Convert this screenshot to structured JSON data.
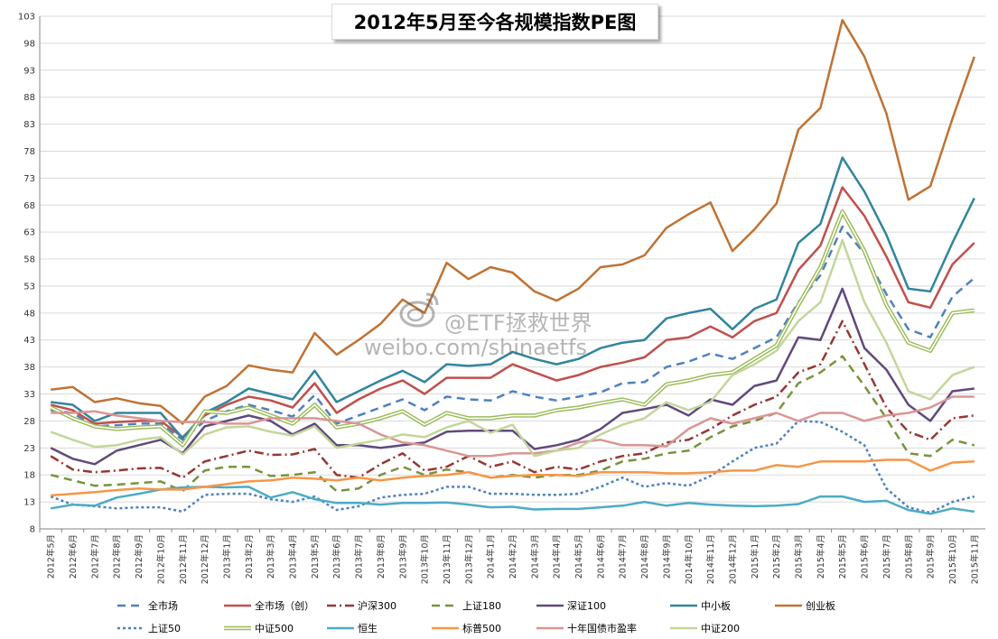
{
  "chart_data": {
    "type": "line",
    "title": "2012年5月至今各规模指数PE图",
    "xlabel": "",
    "ylabel": "",
    "ylim": [
      8,
      103
    ],
    "yticks": [
      8,
      13,
      18,
      23,
      28,
      33,
      38,
      43,
      48,
      53,
      58,
      63,
      68,
      73,
      78,
      83,
      88,
      93,
      98,
      103
    ],
    "grid": true,
    "legend": "bottom",
    "categories": [
      "2012年5月",
      "2012年6月",
      "2012年7月",
      "2012年8月",
      "2012年9月",
      "2012年10月",
      "2012年11月",
      "2012年12月",
      "2013年1月",
      "2013年2月",
      "2013年3月",
      "2013年4月",
      "2013年5月",
      "2013年6月",
      "2013年7月",
      "2013年8月",
      "2013年9月",
      "2013年10月",
      "2013年11月",
      "2013年12月",
      "2014年1月",
      "2014年2月",
      "2014年3月",
      "2014年4月",
      "2014年5月",
      "2014年6月",
      "2014年7月",
      "2014年8月",
      "2014年9月",
      "2014年10月",
      "2014年11月",
      "2014年12月",
      "2015年1月",
      "2015年2月",
      "2015年3月",
      "2015年4月",
      "2015年5月",
      "2015年6月",
      "2015年7月",
      "2015年8月",
      "2015年9月",
      "2015年10月",
      "2015年11月"
    ],
    "series": [
      {
        "name": "全市场",
        "color": "#4f81bd",
        "dash": "9,6",
        "width": 2.5,
        "values": [
          30.0,
          29.5,
          27.0,
          27.2,
          27.5,
          27.5,
          24.5,
          28.0,
          29.8,
          31.0,
          30.0,
          28.8,
          32.8,
          27.5,
          29.0,
          30.5,
          32.0,
          30.0,
          32.5,
          32.0,
          31.8,
          33.5,
          32.5,
          31.8,
          32.5,
          33.3,
          35.0,
          35.2,
          38.0,
          39.0,
          40.5,
          39.5,
          41.5,
          43.5,
          50.0,
          55.0,
          64.0,
          59.0,
          51.5,
          45.0,
          43.5,
          51.0,
          54.5
        ]
      },
      {
        "name": "全市场（创）",
        "color": "#c0504d",
        "dash": "",
        "width": 2.5,
        "values": [
          31.0,
          30.0,
          27.5,
          27.8,
          28.0,
          28.0,
          25.0,
          29.0,
          31.0,
          32.5,
          31.8,
          30.5,
          35.0,
          29.5,
          32.0,
          34.0,
          35.5,
          33.0,
          36.0,
          36.0,
          36.0,
          38.5,
          37.0,
          35.5,
          36.5,
          38.0,
          38.8,
          39.8,
          43.0,
          43.5,
          45.5,
          43.5,
          46.5,
          48.0,
          56.0,
          60.5,
          71.3,
          66.0,
          58.5,
          50.0,
          49.0,
          57.0,
          61.0
        ]
      },
      {
        "name": "沪深300",
        "color": "#953735",
        "dash": "10,4,2,4",
        "width": 2.5,
        "values": [
          21.5,
          19.0,
          18.5,
          18.8,
          19.2,
          19.3,
          17.5,
          20.5,
          21.5,
          22.5,
          21.7,
          21.8,
          22.8,
          18.0,
          17.5,
          20.0,
          22.0,
          18.8,
          19.5,
          21.5,
          19.5,
          20.5,
          18.5,
          19.5,
          19.0,
          20.5,
          21.5,
          22.0,
          24.0,
          24.5,
          26.5,
          29.0,
          31.0,
          32.5,
          37.0,
          38.5,
          46.5,
          38.5,
          30.5,
          26.0,
          24.5,
          28.5,
          29.0
        ]
      },
      {
        "name": "上证180",
        "color": "#77933c",
        "dash": "9,6",
        "width": 2.5,
        "values": [
          18.0,
          17.0,
          16.0,
          16.2,
          16.5,
          16.8,
          15.0,
          18.8,
          19.5,
          19.5,
          17.8,
          18.0,
          18.5,
          15.0,
          15.5,
          18.0,
          19.5,
          18.0,
          19.0,
          18.5,
          17.5,
          18.0,
          17.5,
          18.0,
          18.0,
          18.8,
          20.5,
          21.0,
          22.0,
          22.5,
          25.0,
          27.0,
          28.0,
          29.5,
          35.0,
          37.0,
          40.0,
          34.5,
          28.5,
          22.0,
          21.5,
          24.5,
          23.5
        ]
      },
      {
        "name": "深证100",
        "color": "#604a7b",
        "dash": "",
        "width": 2.5,
        "values": [
          23.0,
          21.0,
          20.0,
          22.5,
          23.5,
          24.5,
          22.0,
          27.0,
          28.0,
          29.0,
          28.0,
          25.5,
          27.5,
          23.5,
          23.5,
          23.0,
          23.5,
          24.0,
          26.0,
          26.2,
          26.2,
          26.2,
          22.8,
          23.5,
          24.5,
          26.5,
          29.5,
          30.2,
          31.0,
          29.0,
          32.0,
          31.0,
          34.5,
          35.5,
          43.5,
          43.0,
          52.5,
          41.5,
          37.5,
          31.0,
          28.0,
          33.5,
          34.0
        ]
      },
      {
        "name": "中小板",
        "color": "#31859c",
        "dash": "",
        "width": 2.5,
        "values": [
          31.5,
          31.0,
          28.0,
          29.5,
          29.5,
          29.5,
          24.8,
          29.5,
          31.5,
          34.0,
          33.0,
          32.0,
          37.3,
          31.5,
          33.5,
          35.5,
          37.3,
          35.2,
          38.5,
          38.2,
          38.5,
          40.8,
          39.5,
          38.5,
          39.5,
          41.5,
          42.5,
          43.0,
          47.0,
          48.0,
          48.8,
          45.0,
          48.8,
          50.5,
          61.0,
          64.5,
          76.8,
          70.5,
          62.5,
          52.5,
          52.0,
          61.0,
          69.3
        ]
      },
      {
        "name": "创业板",
        "color": "#c07233",
        "dash": "",
        "width": 2.5,
        "values": [
          33.8,
          34.3,
          31.5,
          32.2,
          31.3,
          30.8,
          27.5,
          32.5,
          34.5,
          38.3,
          37.5,
          37.0,
          44.3,
          40.3,
          43.0,
          46.0,
          50.5,
          48.0,
          57.3,
          54.3,
          56.5,
          55.5,
          52.0,
          50.3,
          52.5,
          56.5,
          57.0,
          58.7,
          63.8,
          66.3,
          68.5,
          59.5,
          63.5,
          68.3,
          82.0,
          86.0,
          102.3,
          95.5,
          85.0,
          69.0,
          71.5,
          84.0,
          95.5
        ]
      },
      {
        "name": "上证50",
        "color": "#4f81bd",
        "dash": "3,3",
        "width": 2.5,
        "values": [
          14.0,
          12.5,
          12.2,
          11.8,
          12.0,
          12.0,
          11.2,
          14.3,
          14.5,
          14.5,
          13.5,
          13.0,
          14.0,
          11.5,
          12.2,
          13.8,
          14.3,
          14.5,
          15.8,
          15.8,
          14.5,
          14.5,
          14.3,
          14.3,
          14.5,
          15.8,
          17.5,
          15.8,
          16.5,
          16.0,
          17.8,
          20.5,
          23.0,
          23.8,
          28.0,
          27.8,
          26.0,
          23.5,
          15.5,
          12.0,
          11.0,
          13.0,
          14.0
        ]
      },
      {
        "name": "中证500",
        "color": "#9bbb59",
        "dash": "",
        "width": 2.5,
        "double": true,
        "values": [
          30.5,
          28.5,
          27.0,
          26.5,
          26.8,
          27.0,
          23.5,
          29.8,
          29.5,
          30.5,
          29.0,
          27.5,
          31.0,
          26.8,
          27.5,
          28.5,
          29.8,
          27.3,
          29.5,
          28.5,
          28.5,
          29.0,
          29.0,
          30.0,
          30.5,
          31.3,
          32.0,
          31.0,
          34.8,
          35.5,
          36.5,
          37.0,
          39.5,
          42.0,
          49.5,
          56.5,
          66.8,
          59.5,
          49.5,
          42.5,
          41.0,
          48.0,
          48.5
        ]
      },
      {
        "name": "恒生",
        "color": "#4bacc6",
        "dash": "",
        "width": 2.5,
        "values": [
          11.8,
          12.5,
          12.3,
          13.8,
          14.5,
          15.3,
          15.7,
          15.8,
          15.7,
          15.8,
          13.8,
          14.8,
          13.5,
          12.8,
          12.8,
          12.5,
          12.8,
          12.8,
          12.9,
          12.5,
          12.0,
          12.1,
          11.6,
          11.7,
          11.7,
          12.0,
          12.3,
          13.0,
          12.3,
          12.8,
          12.5,
          12.3,
          12.2,
          12.3,
          12.6,
          14.0,
          14.0,
          13.0,
          13.2,
          11.5,
          10.8,
          11.8,
          11.2
        ]
      },
      {
        "name": "标普500",
        "color": "#f79646",
        "dash": "",
        "width": 2.5,
        "values": [
          14.2,
          14.5,
          14.8,
          15.2,
          15.5,
          15.3,
          15.3,
          15.8,
          16.3,
          16.8,
          17.0,
          17.5,
          17.3,
          17.0,
          17.5,
          17.0,
          17.5,
          17.8,
          18.0,
          18.5,
          17.5,
          17.8,
          18.0,
          18.0,
          17.8,
          18.5,
          18.5,
          18.5,
          18.3,
          18.3,
          18.5,
          18.8,
          18.8,
          19.8,
          19.5,
          20.5,
          20.5,
          20.5,
          20.8,
          20.8,
          18.8,
          20.3,
          20.5
        ]
      },
      {
        "name": "十年国债市盈率",
        "color": "#d99694",
        "dash": "",
        "width": 2.5,
        "values": [
          29.5,
          29.5,
          29.8,
          29.0,
          28.5,
          28.0,
          27.8,
          27.8,
          27.5,
          27.5,
          28.5,
          28.5,
          28.5,
          28.0,
          27.5,
          25.5,
          24.0,
          23.5,
          22.5,
          21.5,
          21.5,
          22.0,
          22.0,
          22.5,
          24.0,
          24.5,
          23.5,
          23.5,
          23.3,
          26.5,
          28.5,
          27.5,
          28.5,
          29.5,
          28.0,
          29.5,
          29.5,
          28.0,
          29.0,
          29.5,
          30.5,
          32.5,
          32.5
        ]
      },
      {
        "name": "中证200",
        "color": "#c3d69b",
        "dash": "",
        "width": 2.5,
        "values": [
          26.0,
          24.5,
          23.2,
          23.5,
          24.5,
          25.0,
          21.8,
          25.5,
          26.8,
          27.0,
          26.0,
          25.3,
          27.0,
          23.0,
          23.8,
          24.5,
          25.5,
          25.0,
          26.8,
          28.0,
          25.8,
          27.3,
          21.5,
          22.5,
          23.0,
          25.5,
          27.3,
          28.5,
          31.5,
          30.0,
          31.5,
          36.5,
          38.5,
          41.0,
          46.5,
          50.0,
          61.5,
          50.0,
          42.5,
          33.5,
          32.0,
          36.5,
          38.0
        ]
      }
    ]
  },
  "watermark": {
    "line1": "@ETF拯救世界",
    "line2": "weibo.com/shinaetfs"
  }
}
